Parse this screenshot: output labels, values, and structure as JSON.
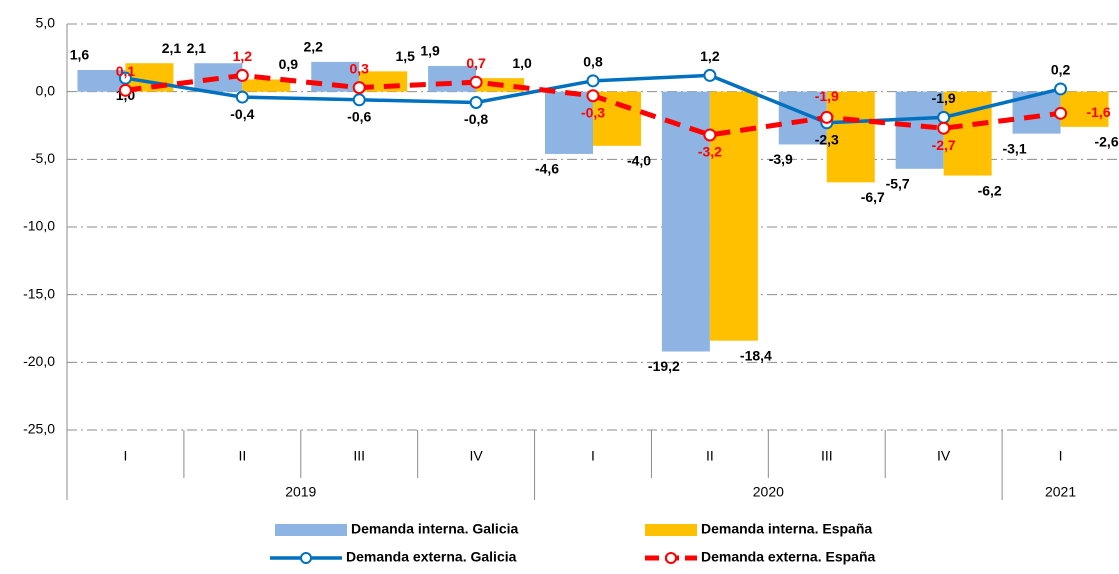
{
  "chart_data": {
    "type": "bar",
    "groups": [
      {
        "name": "2019",
        "categories": [
          "I",
          "II",
          "III",
          "IV"
        ]
      },
      {
        "name": "2020",
        "categories": [
          "I",
          "II",
          "III",
          "IV"
        ]
      },
      {
        "name": "2021",
        "categories": [
          "I"
        ]
      }
    ],
    "series": [
      {
        "name": "Demanda interna. Galicia",
        "type": "bar",
        "color": "#8EB4E3",
        "values": [
          1.6,
          2.1,
          2.2,
          1.9,
          -4.6,
          -19.2,
          -3.9,
          -5.7,
          -3.1
        ],
        "value_labels": [
          "1,6",
          "2,1",
          "2,2",
          "1,9",
          "-4,6",
          "-19,2",
          "-3,9",
          "-5,7",
          "-3,1"
        ]
      },
      {
        "name": "Demanda interna. España",
        "type": "bar",
        "color": "#FFC000",
        "values": [
          2.1,
          0.9,
          1.5,
          1.0,
          -4.0,
          -18.4,
          -6.7,
          -6.2,
          -2.6
        ],
        "value_labels": [
          "2,1",
          "0,9",
          "1,5",
          "1,0",
          "-4,0",
          "-18,4",
          "-6,7",
          "-6,2",
          "-2,6"
        ]
      },
      {
        "name": "Demanda externa. Galicia",
        "type": "line",
        "color": "#0070C0",
        "values": [
          1.0,
          -0.4,
          -0.6,
          -0.8,
          0.8,
          1.2,
          -2.3,
          -1.9,
          0.2
        ],
        "value_labels": [
          "1,0",
          "-0,4",
          "-0,6",
          "-0,8",
          "0,8",
          "1,2",
          "-2,3",
          "-1,9",
          "0,2"
        ]
      },
      {
        "name": "Demanda externa. España",
        "type": "line",
        "color": "#FF0000",
        "dashed": true,
        "values": [
          0.1,
          1.2,
          0.3,
          0.7,
          -0.3,
          -3.2,
          -1.9,
          -2.7,
          -1.6
        ],
        "value_labels": [
          "0,1",
          "1,2",
          "0,3",
          "0,7",
          "-0,3",
          "-3,2",
          "-1,9",
          "-2,7",
          "-1,6"
        ]
      }
    ],
    "ylim": [
      -25,
      5
    ],
    "yticks": [
      {
        "value": 5,
        "label": "5,0"
      },
      {
        "value": 0,
        "label": "0,0"
      },
      {
        "value": -5,
        "label": "-5,0"
      },
      {
        "value": -10,
        "label": "-10,0"
      },
      {
        "value": -15,
        "label": "-15,0"
      },
      {
        "value": -20,
        "label": "-20,0"
      },
      {
        "value": -25,
        "label": "-25,0"
      }
    ],
    "grid": true
  }
}
